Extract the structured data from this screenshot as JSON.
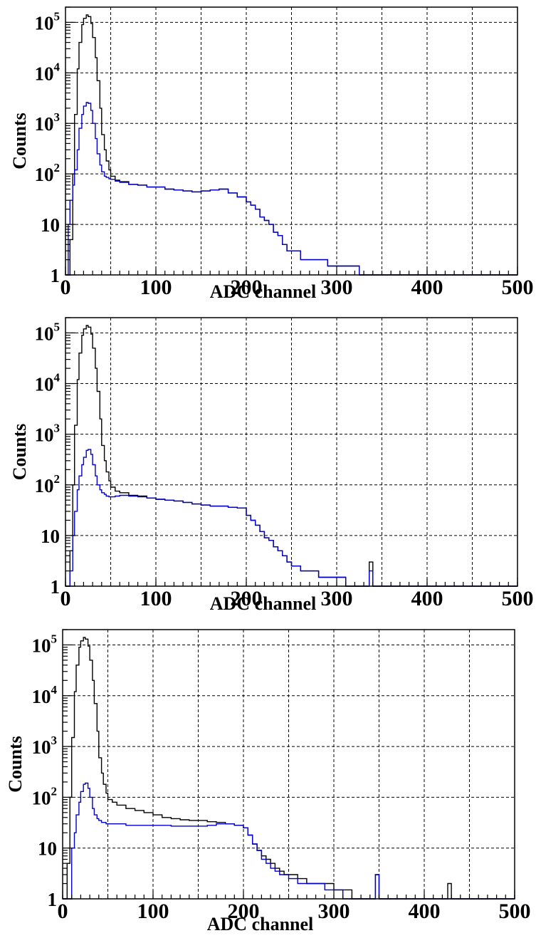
{
  "chart_data": [
    {
      "type": "line",
      "xlabel": "ADC channel",
      "ylabel": "Counts",
      "xlim": [
        0,
        500
      ],
      "ylim": [
        1,
        200000
      ],
      "yscale": "log",
      "grid": true,
      "x_ticks": [
        "0",
        "100",
        "200",
        "300",
        "400",
        "500"
      ],
      "y_ticks": [
        {
          "base": "1",
          "exp": ""
        },
        {
          "base": "10",
          "exp": ""
        },
        {
          "base": "10",
          "exp": "2"
        },
        {
          "base": "10",
          "exp": "3"
        },
        {
          "base": "10",
          "exp": "4"
        },
        {
          "base": "10",
          "exp": "5"
        }
      ],
      "series": [
        {
          "color": "#000000",
          "x": [
            0,
            3,
            5,
            8,
            10,
            13,
            15,
            18,
            20,
            23,
            25,
            28,
            30,
            33,
            35,
            38,
            40,
            43,
            45,
            48,
            50,
            55,
            60,
            70,
            80,
            90,
            100,
            110,
            120,
            130,
            140,
            150,
            160,
            170,
            180,
            190,
            200,
            205,
            210,
            215,
            220,
            225,
            230,
            235,
            240,
            245,
            250,
            260,
            270,
            280,
            290,
            300,
            310,
            320,
            325,
            500
          ],
          "y": [
            1,
            1,
            5,
            100,
            1500,
            12000,
            40000,
            90000,
            120000,
            140000,
            130000,
            95000,
            50000,
            20000,
            7000,
            2000,
            600,
            300,
            180,
            120,
            90,
            75,
            70,
            62,
            60,
            55,
            55,
            50,
            48,
            46,
            44,
            46,
            48,
            50,
            42,
            35,
            28,
            24,
            20,
            14,
            12,
            10,
            7,
            6,
            4,
            3,
            3,
            2,
            2,
            2,
            1.5,
            1.5,
            1.5,
            1.5,
            1,
            1
          ]
        },
        {
          "color": "#0000c8",
          "x": [
            0,
            2,
            3,
            5,
            8,
            10,
            13,
            15,
            18,
            20,
            23,
            25,
            28,
            30,
            33,
            35,
            38,
            40,
            43,
            45,
            48,
            50,
            55,
            60,
            70,
            80,
            90,
            100,
            110,
            120,
            130,
            140,
            150,
            160,
            170,
            180,
            190,
            200,
            205,
            210,
            215,
            220,
            225,
            230,
            235,
            240,
            245,
            250,
            260,
            270,
            280,
            290,
            300,
            310,
            320,
            325,
            500
          ],
          "y": [
            1,
            1,
            10,
            30,
            60,
            120,
            300,
            800,
            1500,
            2200,
            2600,
            2500,
            1800,
            1000,
            500,
            250,
            150,
            110,
            90,
            85,
            80,
            78,
            72,
            68,
            62,
            60,
            55,
            55,
            50,
            48,
            46,
            44,
            46,
            48,
            50,
            42,
            35,
            28,
            24,
            20,
            14,
            12,
            10,
            7,
            6,
            4,
            3,
            3,
            2,
            2,
            2,
            1.5,
            1.5,
            1.5,
            1.5,
            1,
            1
          ]
        }
      ]
    },
    {
      "type": "line",
      "xlabel": "ADC channel",
      "ylabel": "Counts",
      "xlim": [
        0,
        500
      ],
      "ylim": [
        1,
        200000
      ],
      "yscale": "log",
      "grid": true,
      "x_ticks": [
        "0",
        "100",
        "200",
        "300",
        "400",
        "500"
      ],
      "y_ticks": [
        {
          "base": "1",
          "exp": ""
        },
        {
          "base": "10",
          "exp": ""
        },
        {
          "base": "10",
          "exp": "2"
        },
        {
          "base": "10",
          "exp": "3"
        },
        {
          "base": "10",
          "exp": "4"
        },
        {
          "base": "10",
          "exp": "5"
        }
      ],
      "series": [
        {
          "color": "#000000",
          "x": [
            0,
            3,
            5,
            8,
            10,
            13,
            15,
            18,
            20,
            23,
            25,
            28,
            30,
            33,
            35,
            38,
            40,
            43,
            45,
            48,
            50,
            55,
            60,
            70,
            80,
            90,
            100,
            110,
            120,
            130,
            140,
            150,
            160,
            170,
            180,
            190,
            200,
            205,
            210,
            215,
            220,
            225,
            230,
            235,
            240,
            245,
            250,
            260,
            270,
            280,
            290,
            300,
            310,
            335,
            336,
            340,
            500
          ],
          "y": [
            1,
            1,
            5,
            100,
            1500,
            12000,
            40000,
            90000,
            120000,
            140000,
            130000,
            95000,
            50000,
            20000,
            7000,
            2000,
            600,
            300,
            180,
            120,
            90,
            75,
            70,
            62,
            60,
            55,
            52,
            50,
            48,
            45,
            42,
            40,
            38,
            38,
            36,
            35,
            25,
            20,
            16,
            12,
            9,
            8,
            6,
            5,
            4,
            3,
            2.5,
            2,
            2,
            1.5,
            1.5,
            1.5,
            1,
            1,
            3,
            1,
            1
          ]
        },
        {
          "color": "#0000c8",
          "x": [
            0,
            3,
            5,
            8,
            10,
            13,
            15,
            18,
            20,
            23,
            25,
            28,
            30,
            33,
            35,
            38,
            40,
            43,
            45,
            48,
            50,
            55,
            60,
            70,
            80,
            90,
            100,
            110,
            120,
            130,
            140,
            150,
            160,
            170,
            180,
            190,
            200,
            205,
            210,
            215,
            220,
            225,
            230,
            235,
            240,
            245,
            250,
            260,
            270,
            280,
            290,
            300,
            310,
            335,
            336,
            340,
            500
          ],
          "y": [
            1,
            1,
            2,
            10,
            30,
            80,
            150,
            250,
            350,
            480,
            500,
            400,
            250,
            150,
            100,
            80,
            70,
            65,
            60,
            58,
            58,
            60,
            62,
            60,
            58,
            55,
            52,
            50,
            48,
            45,
            42,
            40,
            38,
            38,
            36,
            35,
            25,
            20,
            16,
            12,
            9,
            8,
            6,
            5,
            4,
            3,
            2.5,
            2,
            2,
            1.5,
            1.5,
            1.5,
            1,
            1,
            2,
            1,
            1
          ]
        }
      ]
    },
    {
      "type": "line",
      "xlabel": "ADC channel",
      "ylabel": "Counts",
      "xlim": [
        0,
        500
      ],
      "ylim": [
        1,
        200000
      ],
      "yscale": "log",
      "grid": true,
      "x_ticks": [
        "0",
        "100",
        "200",
        "300",
        "400",
        "500"
      ],
      "y_ticks": [
        {
          "base": "1",
          "exp": ""
        },
        {
          "base": "10",
          "exp": ""
        },
        {
          "base": "10",
          "exp": "2"
        },
        {
          "base": "10",
          "exp": "3"
        },
        {
          "base": "10",
          "exp": "4"
        },
        {
          "base": "10",
          "exp": "5"
        }
      ],
      "series": [
        {
          "color": "#000000",
          "x": [
            0,
            3,
            5,
            8,
            10,
            13,
            15,
            18,
            20,
            23,
            25,
            28,
            30,
            33,
            35,
            38,
            40,
            43,
            45,
            48,
            50,
            55,
            60,
            70,
            80,
            90,
            100,
            110,
            120,
            130,
            140,
            150,
            160,
            170,
            180,
            190,
            200,
            205,
            210,
            215,
            220,
            225,
            230,
            235,
            240,
            245,
            250,
            260,
            270,
            280,
            290,
            300,
            310,
            320,
            345,
            346,
            350,
            425,
            426,
            430,
            500
          ],
          "y": [
            1,
            1,
            5,
            100,
            1500,
            12000,
            40000,
            90000,
            120000,
            140000,
            130000,
            95000,
            50000,
            20000,
            7000,
            2000,
            600,
            300,
            180,
            120,
            90,
            80,
            70,
            60,
            55,
            50,
            45,
            40,
            38,
            36,
            35,
            35,
            33,
            32,
            30,
            28,
            25,
            18,
            12,
            9,
            7,
            6,
            5,
            4,
            3.5,
            3,
            3,
            2.5,
            2,
            2,
            2,
            1.5,
            1.5,
            1,
            1,
            3,
            1,
            1,
            2,
            1,
            1
          ]
        },
        {
          "color": "#0000c8",
          "x": [
            0,
            3,
            5,
            8,
            10,
            13,
            15,
            18,
            20,
            23,
            25,
            28,
            30,
            33,
            35,
            38,
            40,
            43,
            45,
            48,
            50,
            55,
            60,
            70,
            80,
            90,
            100,
            110,
            120,
            130,
            140,
            150,
            160,
            170,
            180,
            190,
            200,
            205,
            210,
            215,
            220,
            225,
            230,
            235,
            240,
            245,
            250,
            260,
            270,
            280,
            290,
            300,
            310,
            320,
            345,
            346,
            350,
            500
          ],
          "y": [
            1,
            1,
            1,
            1,
            10,
            20,
            45,
            80,
            130,
            180,
            190,
            150,
            100,
            60,
            45,
            38,
            35,
            32,
            32,
            30,
            30,
            30,
            30,
            28,
            28,
            28,
            28,
            28,
            27,
            27,
            27,
            27,
            28,
            30,
            30,
            28,
            25,
            18,
            12,
            9,
            6,
            5,
            4,
            3.5,
            3,
            3,
            2.5,
            2,
            2,
            2,
            1.5,
            1.5,
            1,
            1,
            1,
            3,
            1,
            1
          ]
        }
      ]
    }
  ]
}
